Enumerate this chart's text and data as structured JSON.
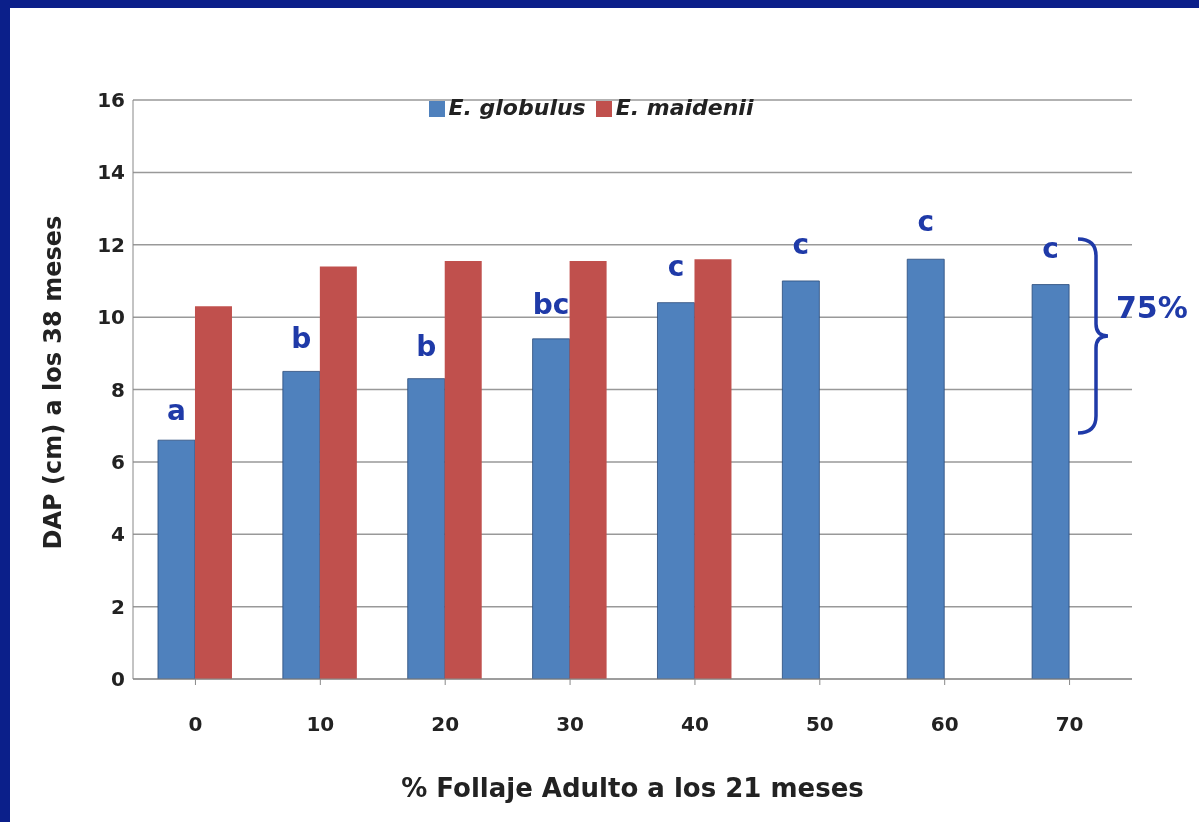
{
  "chart_data": {
    "type": "bar",
    "xlabel": "% Follaje Adulto a los 21 meses",
    "ylabel": "DAP (cm) a los 38 meses",
    "categories": [
      "0",
      "10",
      "20",
      "30",
      "40",
      "50",
      "60",
      "70"
    ],
    "series": [
      {
        "name": "E. globulus",
        "color": "#4f81bd",
        "values": [
          6.6,
          8.5,
          8.3,
          9.4,
          10.4,
          11.0,
          11.6,
          10.9
        ]
      },
      {
        "name": "E. maidenii",
        "color": "#c0504d",
        "values": [
          10.3,
          11.4,
          11.55,
          11.55,
          11.6,
          null,
          null,
          null
        ]
      }
    ],
    "ylim": [
      0,
      16
    ],
    "yticks": [
      0,
      2,
      4,
      6,
      8,
      10,
      12,
      14,
      16
    ],
    "grid": "y",
    "legend": "top",
    "annotations": [
      {
        "text": "a",
        "x": "0",
        "y": 6.6
      },
      {
        "text": "b",
        "x": "10",
        "y": 8.5
      },
      {
        "text": "b",
        "x": "20",
        "y": 8.3
      },
      {
        "text": "bc",
        "x": "30",
        "y": 9.4
      },
      {
        "text": "c",
        "x": "40",
        "y": 10.4
      },
      {
        "text": "c",
        "x": "50",
        "y": 11.0
      },
      {
        "text": "c",
        "x": "60",
        "y": 11.6
      },
      {
        "text": "c",
        "x": "70",
        "y": 10.9
      },
      "75%"
    ]
  }
}
